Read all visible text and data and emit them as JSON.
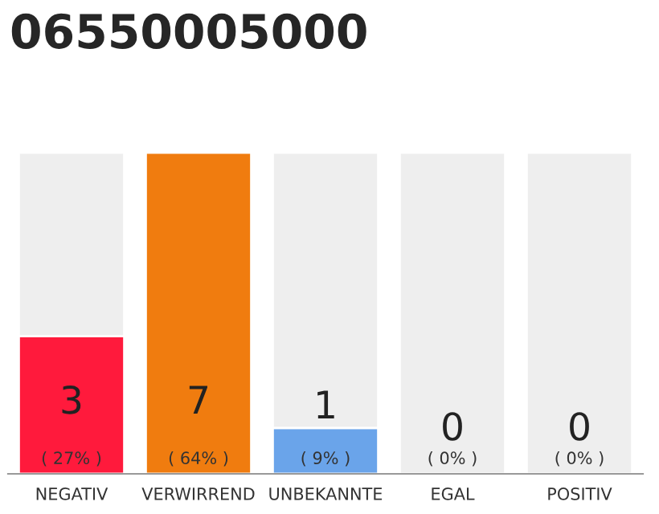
{
  "chart_data": {
    "type": "bar",
    "title": "06550005000",
    "categories": [
      "NEGATIV",
      "VERWIRREND",
      "UNBEKANNTE",
      "EGAL",
      "POSITIV"
    ],
    "stacked": true,
    "ylim": [
      0,
      7
    ],
    "tick_labels": "x",
    "series": [
      {
        "values": [
          3,
          7,
          1,
          0,
          0
        ],
        "colors": [
          "#ff1a3c",
          "#f07c0f",
          "#6aa4ea",
          "#d0d0d0",
          "#d0d0d0"
        ],
        "value_labels": [
          "3",
          "7",
          "1",
          null,
          null
        ]
      },
      {
        "values": [
          4,
          null,
          6,
          7,
          7
        ],
        "color": "#eeeeee"
      }
    ],
    "annotations": [
      "( 27% )",
      "( 64% )",
      "( 9% )",
      "( 0% )",
      "( 0% )",
      {
        "text": "0",
        "x": "EGAL",
        "y": 0
      },
      {
        "text": "0",
        "x": "POSITIV",
        "y": 0
      }
    ]
  }
}
